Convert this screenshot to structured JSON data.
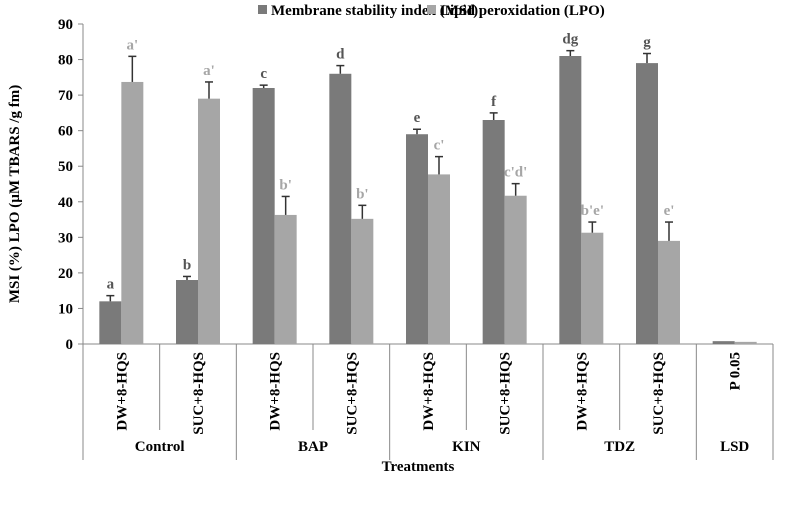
{
  "chart_data": {
    "type": "bar",
    "title": "",
    "xlabel": "Treatments",
    "ylabel": "MSI (%) LPO (µM TBARS /g fm)",
    "ylim": [
      0,
      90
    ],
    "yticks": [
      0,
      10,
      20,
      30,
      40,
      50,
      60,
      70,
      80,
      90
    ],
    "grid": false,
    "legend_position": "top",
    "categories": [
      "DW+8-HQS",
      "SUC+8-HQS",
      "DW+8-HQS",
      "SUC+8-HQS",
      "DW+8-HQS",
      "SUC+8-HQS",
      "DW+8-HQS",
      "SUC+8-HQS",
      "P 0.05"
    ],
    "groups": [
      {
        "label": "Control",
        "span": 2
      },
      {
        "label": "BAP",
        "span": 2
      },
      {
        "label": "KIN",
        "span": 2
      },
      {
        "label": "TDZ",
        "span": 2
      },
      {
        "label": "LSD",
        "span": 1
      }
    ],
    "series": [
      {
        "name": "Membrane stability index (MSI)",
        "color": "#7a7a7a",
        "label_color": "#555555",
        "values": [
          12,
          18,
          72,
          76,
          59,
          63,
          81,
          79,
          0.8
        ],
        "errors": [
          1.6,
          1.0,
          0.8,
          2.3,
          1.4,
          2.0,
          1.5,
          2.7,
          null
        ],
        "letters": [
          "a",
          "b",
          "c",
          "d",
          "e",
          "f",
          "dg",
          "g",
          ""
        ]
      },
      {
        "name": "Lipid peroxidation (LPO)",
        "color": "#a6a6a6",
        "label_color": "#a6a6a6",
        "values": [
          73.7,
          69,
          36.3,
          35.2,
          47.7,
          41.7,
          31.3,
          29,
          0.6
        ],
        "errors": [
          7.2,
          4.7,
          5.2,
          3.8,
          5.0,
          3.4,
          3.0,
          5.3,
          null
        ],
        "letters": [
          "a'",
          "a'",
          "b'",
          "b'",
          "c'",
          "c'd'",
          "b'e'",
          "e'",
          ""
        ]
      }
    ]
  }
}
